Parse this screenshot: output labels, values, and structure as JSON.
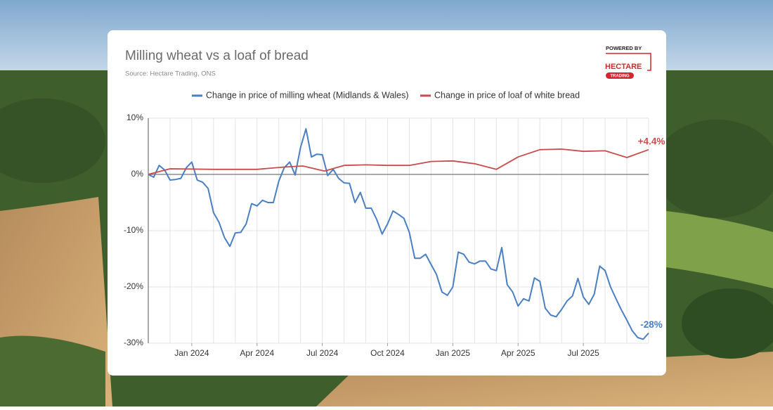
{
  "chart_data": {
    "type": "line",
    "title": "Milling wheat vs a loaf of bread",
    "subtitle": "Source: Hectare Trading, ONS",
    "logo": {
      "top": "POWERED BY",
      "name": "HECTARE",
      "tag": "TRADING"
    },
    "xlim": [
      0,
      23
    ],
    "xticks": [
      {
        "value": 2,
        "label": "Jan 2024"
      },
      {
        "value": 5,
        "label": "Apr 2024"
      },
      {
        "value": 8,
        "label": "Jul 2024"
      },
      {
        "value": 11,
        "label": "Oct 2024"
      },
      {
        "value": 14,
        "label": "Jan 2025"
      },
      {
        "value": 17,
        "label": "Apr 2025"
      },
      {
        "value": 20,
        "label": "Jul 2025"
      }
    ],
    "xgrid_ticks": [
      1,
      2,
      3,
      4,
      5,
      6,
      7,
      8,
      9,
      10,
      11,
      12,
      13,
      14,
      15,
      16,
      17,
      18,
      19,
      20,
      21,
      22
    ],
    "ylim": [
      -30,
      10
    ],
    "yticks": [
      {
        "value": -30,
        "label": "-30%"
      },
      {
        "value": -20,
        "label": "-20%"
      },
      {
        "value": -10,
        "label": "-10%"
      },
      {
        "value": 0,
        "label": "0%"
      },
      {
        "value": 10,
        "label": "10%"
      }
    ],
    "grid": true,
    "legend": "top",
    "series": [
      {
        "name": "Change in price of milling wheat (Midlands & Wales)",
        "color": "#4a7fc1",
        "end_label": "-28%",
        "x": [
          0,
          0.25,
          0.5,
          0.75,
          1,
          1.25,
          1.5,
          1.75,
          2,
          2.25,
          2.5,
          2.75,
          3,
          3.25,
          3.5,
          3.75,
          4,
          4.25,
          4.5,
          4.75,
          5,
          5.25,
          5.5,
          5.75,
          6,
          6.25,
          6.5,
          6.75,
          7,
          7.25,
          7.5,
          7.75,
          8,
          8.25,
          8.5,
          8.75,
          9,
          9.25,
          9.5,
          9.75,
          10,
          10.25,
          10.5,
          10.75,
          11,
          11.25,
          11.5,
          11.75,
          12,
          12.25,
          12.5,
          12.75,
          13,
          13.25,
          13.5,
          13.75,
          14,
          14.25,
          14.5,
          14.75,
          15,
          15.25,
          15.5,
          15.75,
          16,
          16.25,
          16.5,
          16.75,
          17,
          17.25,
          17.5,
          17.75,
          18,
          18.25,
          18.5,
          18.75,
          19,
          19.25,
          19.5,
          19.75,
          20,
          20.25,
          20.5,
          20.75,
          21,
          21.25,
          21.5,
          21.75,
          22,
          22.25,
          22.5,
          22.75,
          23
        ],
        "values": [
          0,
          -0.5,
          1.6,
          0.8,
          -1.0,
          -0.9,
          -0.7,
          1.2,
          2.2,
          -1.0,
          -1.4,
          -2.5,
          -6.8,
          -8.5,
          -11.2,
          -12.8,
          -10.4,
          -10.3,
          -8.8,
          -5.2,
          -5.6,
          -4.6,
          -5.0,
          -5.0,
          -1.2,
          1.2,
          2.2,
          -0.1,
          4.8,
          8.1,
          3.1,
          3.6,
          3.5,
          -0.2,
          0.9,
          -0.7,
          -1.5,
          -1.6,
          -5.0,
          -3.2,
          -6.0,
          -6.0,
          -8.0,
          -10.6,
          -8.8,
          -6.5,
          -7.1,
          -7.8,
          -10.3,
          -14.9,
          -14.9,
          -14.2,
          -16.0,
          -17.8,
          -20.9,
          -21.5,
          -20.0,
          -13.8,
          -14.2,
          -15.6,
          -15.9,
          -15.4,
          -15.4,
          -16.8,
          -17.1,
          -13.0,
          -19.6,
          -20.9,
          -23.4,
          -22.1,
          -22.5,
          -18.4,
          -19.0,
          -23.8,
          -25.0,
          -25.3,
          -24.0,
          -22.5,
          -21.6,
          -18.5,
          -21.8,
          -23.1,
          -21.3,
          -16.3,
          -17.1,
          -20.0,
          -22.1,
          -24.1,
          -25.9,
          -27.8,
          -29.0,
          -29.3,
          -28.2
        ]
      },
      {
        "name": "Change in price of loaf of white bread",
        "color": "#c94c4c",
        "end_label": "+4.4%",
        "x": [
          0,
          1,
          3,
          5,
          6.2,
          7.1,
          8.1,
          9,
          10,
          11,
          12,
          13,
          14,
          15,
          16,
          17,
          18,
          19,
          20,
          21,
          22,
          23
        ],
        "values": [
          0,
          1.0,
          0.9,
          0.9,
          1.3,
          1.5,
          0.6,
          1.6,
          1.7,
          1.6,
          1.6,
          2.3,
          2.4,
          1.9,
          0.9,
          3.1,
          4.4,
          4.5,
          4.1,
          4.2,
          3.0,
          4.4
        ]
      }
    ]
  }
}
